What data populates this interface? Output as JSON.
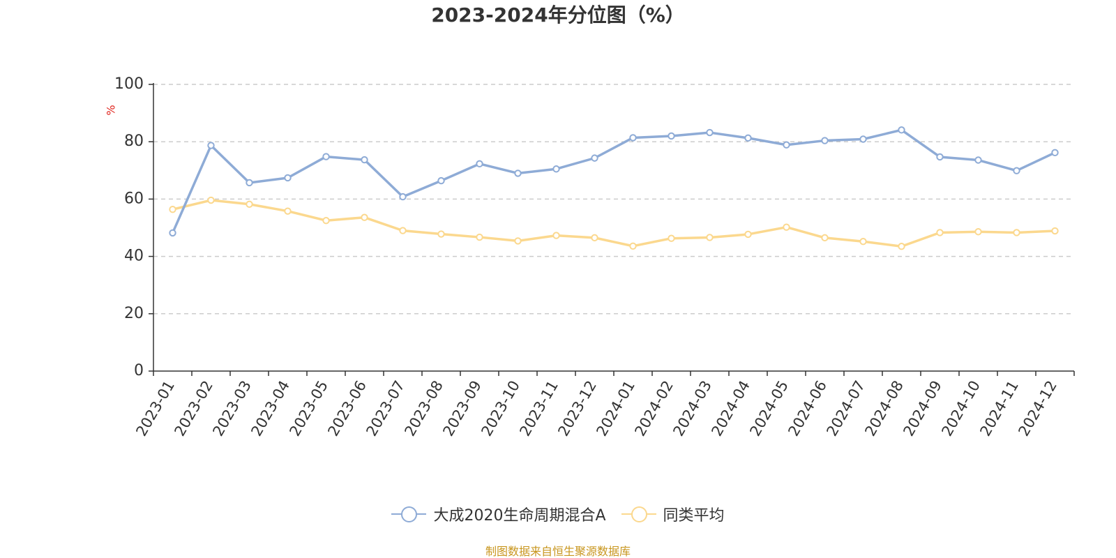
{
  "chart_data": {
    "type": "line",
    "title": "2023-2024年分位图（%）",
    "ylabel": "%",
    "ylim": [
      0,
      100
    ],
    "yticks": [
      0,
      20,
      40,
      60,
      80,
      100
    ],
    "grid": "horizontal-dashed",
    "legend_position": "bottom",
    "categories": [
      "2023-01",
      "2023-02",
      "2023-03",
      "2023-04",
      "2023-05",
      "2023-06",
      "2023-07",
      "2023-08",
      "2023-09",
      "2023-10",
      "2023-11",
      "2023-12",
      "2024-01",
      "2024-02",
      "2024-03",
      "2024-04",
      "2024-05",
      "2024-06",
      "2024-07",
      "2024-08",
      "2024-09",
      "2024-10",
      "2024-11",
      "2024-12"
    ],
    "series": [
      {
        "name": "大成2020生命周期混合A",
        "color": "#8eabd6",
        "values": [
          48.2,
          78.7,
          65.7,
          67.4,
          74.8,
          73.7,
          60.8,
          66.4,
          72.3,
          69.0,
          70.5,
          74.3,
          81.4,
          82.0,
          83.2,
          81.3,
          78.9,
          80.4,
          80.9,
          84.1,
          74.7,
          73.6,
          69.9,
          76.2
        ]
      },
      {
        "name": "同类平均",
        "color": "#fbd88e",
        "values": [
          56.4,
          59.6,
          58.2,
          55.8,
          52.5,
          53.6,
          49.0,
          47.8,
          46.7,
          45.4,
          47.3,
          46.5,
          43.6,
          46.3,
          46.6,
          47.7,
          50.2,
          46.5,
          45.2,
          43.5,
          48.3,
          48.6,
          48.3,
          48.9
        ]
      }
    ]
  },
  "source_note": "制图数据来自恒生聚源数据库"
}
